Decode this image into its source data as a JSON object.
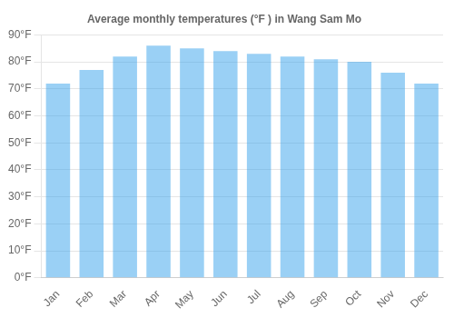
{
  "chart_data": {
    "type": "bar",
    "title": "Average monthly temperatures (°F ) in Wang Sam Mo",
    "categories": [
      "Jan",
      "Feb",
      "Mar",
      "Apr",
      "May",
      "Jun",
      "Jul",
      "Aug",
      "Sep",
      "Oct",
      "Nov",
      "Dec"
    ],
    "values": [
      72,
      77,
      82,
      86,
      85,
      84,
      83,
      82,
      81,
      80,
      76,
      72
    ],
    "ylim": [
      0,
      90
    ],
    "yticks": [
      {
        "value": 0,
        "label": "0°F"
      },
      {
        "value": 10,
        "label": "10°F"
      },
      {
        "value": 20,
        "label": "20°F"
      },
      {
        "value": 30,
        "label": "30°F"
      },
      {
        "value": 40,
        "label": "40°F"
      },
      {
        "value": 50,
        "label": "50°F"
      },
      {
        "value": 60,
        "label": "60°F"
      },
      {
        "value": 70,
        "label": "70°F"
      },
      {
        "value": 80,
        "label": "80°F"
      },
      {
        "value": 90,
        "label": "90°F"
      }
    ],
    "grid": true
  }
}
